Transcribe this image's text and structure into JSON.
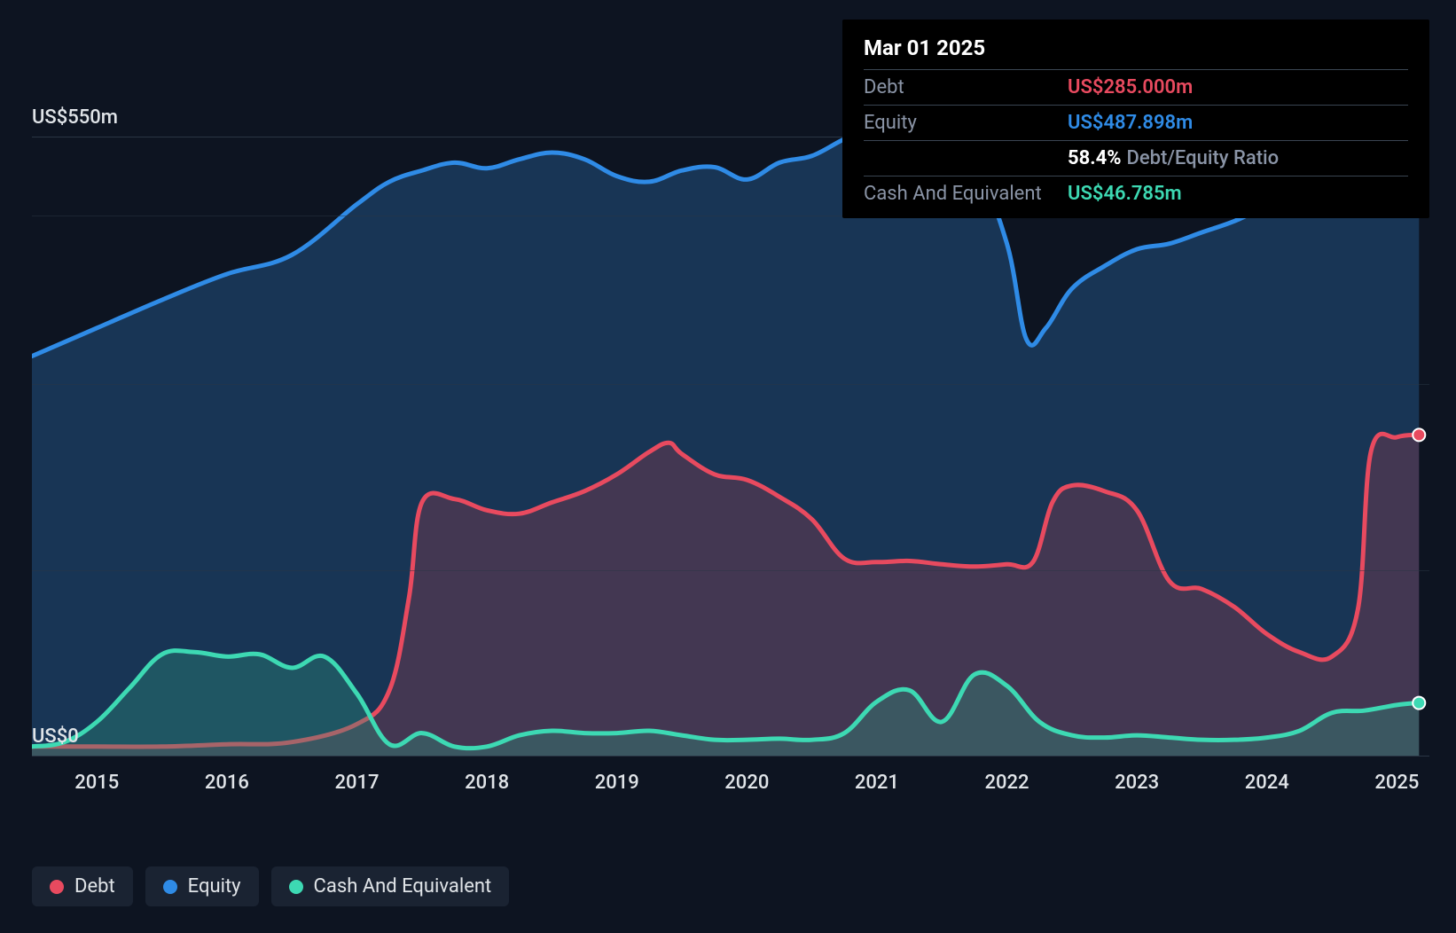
{
  "chart": {
    "type": "area",
    "background_color": "#0d1421",
    "grid_color": "#2a3544",
    "line_width": 5,
    "marker_radius": 7,
    "x_domain_years": [
      2014.5,
      2025.25
    ],
    "y_domain": [
      -30,
      640
    ],
    "yticks": [
      {
        "value": 0,
        "label": "US$0"
      },
      {
        "value": 550,
        "label": "US$550m"
      }
    ],
    "xticks": [
      {
        "value": 2015,
        "label": "2015"
      },
      {
        "value": 2016,
        "label": "2016"
      },
      {
        "value": 2017,
        "label": "2017"
      },
      {
        "value": 2018,
        "label": "2018"
      },
      {
        "value": 2019,
        "label": "2019"
      },
      {
        "value": 2020,
        "label": "2020"
      },
      {
        "value": 2021,
        "label": "2021"
      },
      {
        "value": 2022,
        "label": "2022"
      },
      {
        "value": 2023,
        "label": "2023"
      },
      {
        "value": 2024,
        "label": "2024"
      },
      {
        "value": 2025,
        "label": "2025"
      }
    ],
    "label_fontsize": 22,
    "label_color": "#e0e4e8",
    "series": [
      {
        "key": "equity",
        "name": "Equity",
        "color": "#2f8be6",
        "fill_color": "rgba(35,80,130,0.55)",
        "points": [
          [
            2014.5,
            355
          ],
          [
            2015.0,
            380
          ],
          [
            2015.5,
            405
          ],
          [
            2016.0,
            428
          ],
          [
            2016.5,
            445
          ],
          [
            2017.0,
            490
          ],
          [
            2017.25,
            510
          ],
          [
            2017.5,
            520
          ],
          [
            2017.75,
            527
          ],
          [
            2018.0,
            522
          ],
          [
            2018.25,
            530
          ],
          [
            2018.5,
            536
          ],
          [
            2018.75,
            530
          ],
          [
            2019.0,
            515
          ],
          [
            2019.25,
            510
          ],
          [
            2019.5,
            520
          ],
          [
            2019.75,
            523
          ],
          [
            2020.0,
            512
          ],
          [
            2020.25,
            527
          ],
          [
            2020.5,
            533
          ],
          [
            2020.75,
            548
          ],
          [
            2021.0,
            560
          ],
          [
            2021.1,
            552
          ],
          [
            2021.25,
            535
          ],
          [
            2021.5,
            530
          ],
          [
            2021.75,
            525
          ],
          [
            2022.0,
            455
          ],
          [
            2022.15,
            370
          ],
          [
            2022.3,
            380
          ],
          [
            2022.5,
            415
          ],
          [
            2022.75,
            435
          ],
          [
            2023.0,
            450
          ],
          [
            2023.25,
            455
          ],
          [
            2023.5,
            465
          ],
          [
            2023.75,
            475
          ],
          [
            2024.0,
            488
          ],
          [
            2024.25,
            495
          ],
          [
            2024.5,
            508
          ],
          [
            2024.75,
            522
          ],
          [
            2025.0,
            513
          ],
          [
            2025.17,
            487.898
          ]
        ],
        "end_value": 487.898
      },
      {
        "key": "debt",
        "name": "Debt",
        "color": "#e84a5f",
        "fill_color": "rgba(180,60,75,0.28)",
        "points": [
          [
            2014.5,
            8
          ],
          [
            2015.0,
            8
          ],
          [
            2015.5,
            8
          ],
          [
            2016.0,
            10
          ],
          [
            2016.5,
            12
          ],
          [
            2017.0,
            28
          ],
          [
            2017.25,
            58
          ],
          [
            2017.4,
            140
          ],
          [
            2017.5,
            225
          ],
          [
            2017.75,
            228
          ],
          [
            2018.0,
            218
          ],
          [
            2018.25,
            215
          ],
          [
            2018.5,
            225
          ],
          [
            2018.75,
            235
          ],
          [
            2019.0,
            250
          ],
          [
            2019.25,
            270
          ],
          [
            2019.4,
            278
          ],
          [
            2019.5,
            268
          ],
          [
            2019.75,
            250
          ],
          [
            2020.0,
            245
          ],
          [
            2020.25,
            230
          ],
          [
            2020.5,
            210
          ],
          [
            2020.75,
            175
          ],
          [
            2021.0,
            172
          ],
          [
            2021.25,
            173
          ],
          [
            2021.5,
            170
          ],
          [
            2021.75,
            168
          ],
          [
            2022.0,
            170
          ],
          [
            2022.2,
            172
          ],
          [
            2022.35,
            225
          ],
          [
            2022.5,
            240
          ],
          [
            2022.75,
            235
          ],
          [
            2023.0,
            218
          ],
          [
            2023.25,
            155
          ],
          [
            2023.5,
            148
          ],
          [
            2023.75,
            132
          ],
          [
            2024.0,
            108
          ],
          [
            2024.25,
            92
          ],
          [
            2024.5,
            88
          ],
          [
            2024.7,
            130
          ],
          [
            2024.8,
            270
          ],
          [
            2025.0,
            283
          ],
          [
            2025.17,
            285
          ]
        ],
        "end_value": 285
      },
      {
        "key": "cash",
        "name": "Cash And Equivalent",
        "color": "#3dd9b3",
        "fill_color": "rgba(45,150,125,0.35)",
        "points": [
          [
            2014.5,
            8
          ],
          [
            2014.75,
            12
          ],
          [
            2015.0,
            30
          ],
          [
            2015.25,
            60
          ],
          [
            2015.5,
            90
          ],
          [
            2015.75,
            92
          ],
          [
            2016.0,
            88
          ],
          [
            2016.25,
            90
          ],
          [
            2016.5,
            78
          ],
          [
            2016.75,
            88
          ],
          [
            2017.0,
            55
          ],
          [
            2017.25,
            10
          ],
          [
            2017.5,
            20
          ],
          [
            2017.75,
            8
          ],
          [
            2018.0,
            8
          ],
          [
            2018.25,
            18
          ],
          [
            2018.5,
            22
          ],
          [
            2018.75,
            20
          ],
          [
            2019.0,
            20
          ],
          [
            2019.25,
            22
          ],
          [
            2019.5,
            18
          ],
          [
            2019.75,
            14
          ],
          [
            2020.0,
            14
          ],
          [
            2020.25,
            15
          ],
          [
            2020.5,
            14
          ],
          [
            2020.75,
            20
          ],
          [
            2021.0,
            48
          ],
          [
            2021.25,
            58
          ],
          [
            2021.5,
            30
          ],
          [
            2021.75,
            72
          ],
          [
            2022.0,
            62
          ],
          [
            2022.25,
            30
          ],
          [
            2022.5,
            18
          ],
          [
            2022.75,
            16
          ],
          [
            2023.0,
            18
          ],
          [
            2023.25,
            16
          ],
          [
            2023.5,
            14
          ],
          [
            2023.75,
            14
          ],
          [
            2024.0,
            16
          ],
          [
            2024.25,
            22
          ],
          [
            2024.5,
            38
          ],
          [
            2024.75,
            40
          ],
          [
            2025.0,
            45
          ],
          [
            2025.17,
            46.785
          ]
        ],
        "end_value": 46.785
      }
    ]
  },
  "tooltip": {
    "title": "Mar 01 2025",
    "rows": [
      {
        "label": "Debt",
        "value": "US$285.000m",
        "color": "#e84a5f"
      },
      {
        "label": "Equity",
        "value": "US$487.898m",
        "color": "#2f8be6"
      },
      {
        "type": "ratio",
        "pct": "58.4%",
        "label": "Debt/Equity Ratio"
      },
      {
        "label": "Cash And Equivalent",
        "value": "US$46.785m",
        "color": "#3dd9b3"
      }
    ]
  },
  "legend": {
    "bg_color": "#1a2332",
    "items": [
      {
        "label": "Debt",
        "color": "#e84a5f"
      },
      {
        "label": "Equity",
        "color": "#2f8be6"
      },
      {
        "label": "Cash And Equivalent",
        "color": "#3dd9b3"
      }
    ]
  }
}
